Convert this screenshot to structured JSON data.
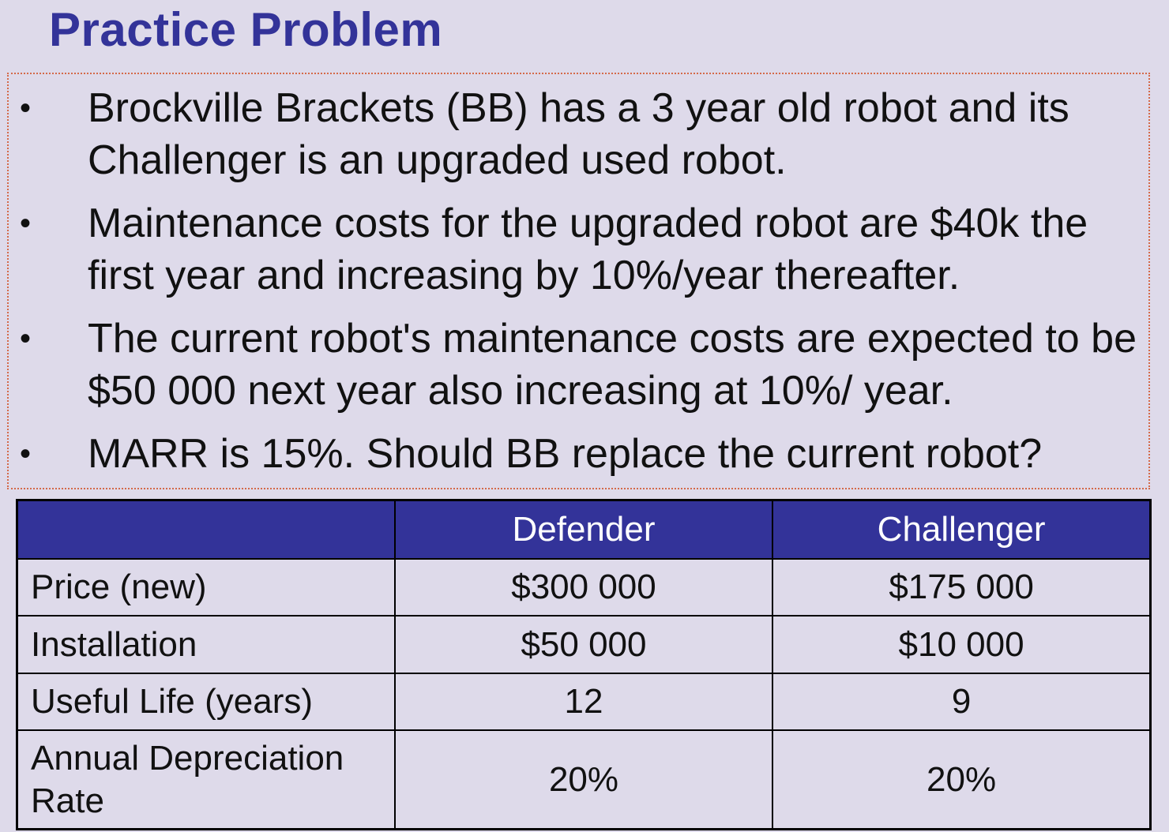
{
  "title": "Practice Problem",
  "bullets": [
    "Brockville Brackets (BB) has a 3 year old robot and its Challenger is an upgraded used robot.",
    "Maintenance costs for the upgraded robot are $40k the first year and increasing by 10%/year thereafter.",
    "The current robot's maintenance costs are expected to be $50 000 next year also increasing at 10%/ year.",
    "MARR is 15%. Should BB replace the current robot?"
  ],
  "bullet_symbol": "•",
  "colors": {
    "title": "#333399",
    "header_bg": "#333399",
    "background": "#dedaea",
    "box_border": "#d46a4a"
  },
  "table": {
    "headers": [
      "",
      "Defender",
      "Challenger"
    ],
    "rows": [
      {
        "label": "Price (new)",
        "defender": "$300 000",
        "challenger": "$175 000"
      },
      {
        "label": "Installation",
        "defender": "$50 000",
        "challenger": "$10 000"
      },
      {
        "label": "Useful Life (years)",
        "defender": "12",
        "challenger": "9"
      },
      {
        "label": "Annual Depreciation Rate",
        "defender": "20%",
        "challenger": "20%"
      }
    ]
  }
}
